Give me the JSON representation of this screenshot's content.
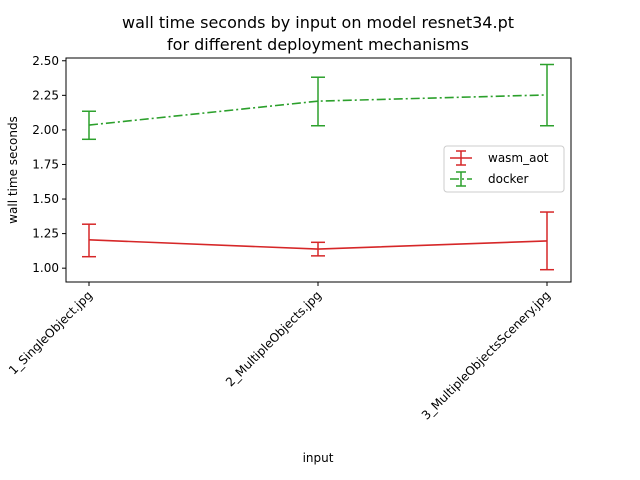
{
  "chart_data": {
    "type": "line",
    "title_lines": [
      "wall time seconds by input on model resnet34.pt",
      "for different deployment mechanisms"
    ],
    "xlabel": "input",
    "ylabel": "wall time seconds",
    "categories": [
      "1_SingleObject.jpg",
      "2_MultipleObjects.jpg",
      "3_MultipleObjectsScenery.jpg"
    ],
    "ylim": [
      0.9,
      2.52
    ],
    "yticks": [
      "1.00",
      "1.25",
      "1.50",
      "1.75",
      "2.00",
      "2.25",
      "2.50"
    ],
    "grid": false,
    "legend_position": "center-right",
    "series": [
      {
        "name": "wasm_aot",
        "color": "#d62728",
        "linestyle": "solid",
        "values": [
          1.205,
          1.138,
          1.197
        ],
        "err_low": [
          1.083,
          1.089,
          0.989
        ],
        "err_high": [
          1.318,
          1.187,
          1.406
        ]
      },
      {
        "name": "docker",
        "color": "#2ca02c",
        "linestyle": "dashdot",
        "values": [
          2.035,
          2.208,
          2.253
        ],
        "err_low": [
          1.932,
          2.03,
          2.03
        ],
        "err_high": [
          2.135,
          2.381,
          2.473
        ]
      }
    ]
  }
}
